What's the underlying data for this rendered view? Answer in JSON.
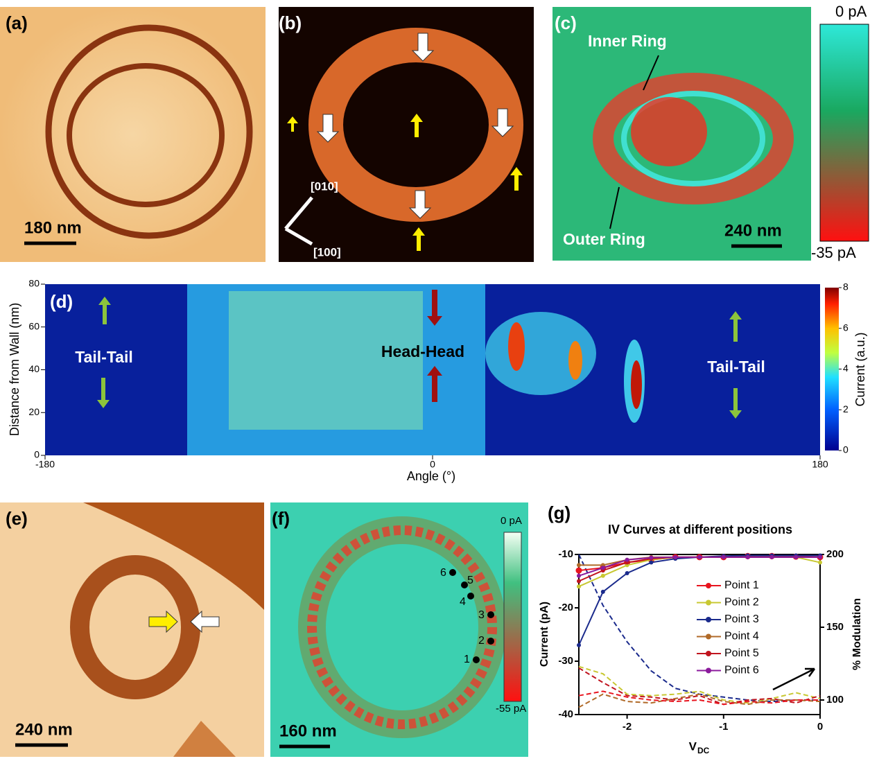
{
  "panels": {
    "a": {
      "label": "(a)",
      "scale_bar": "180 nm"
    },
    "b": {
      "label": "(b)",
      "directions": [
        "[010]",
        "[100]"
      ]
    },
    "c": {
      "label": "(c)",
      "annotations": [
        "Inner Ring",
        "Outer Ring"
      ],
      "scale_bar": "240 nm",
      "colorbar_top": "0 pA",
      "colorbar_bottom": "-35 pA"
    },
    "d": {
      "label": "(d)",
      "annotations": [
        "Tail-Tail",
        "Head-Head",
        "Tail-Tail"
      ],
      "xlabel": "Angle (°)",
      "ylabel": "Distance from Wall (nm)",
      "xlim": [
        -180,
        180
      ],
      "xticks": [
        -180,
        0,
        180
      ],
      "ylim": [
        0,
        80
      ],
      "yticks": [
        0,
        20,
        40,
        60,
        80
      ],
      "colorbar_label": "Current (a.u.)",
      "colorbar_lim": [
        0,
        8
      ],
      "colorbar_ticks": [
        0,
        2,
        4,
        6,
        8
      ]
    },
    "e": {
      "label": "(e)",
      "scale_bar": "240 nm"
    },
    "f": {
      "label": "(f)",
      "scale_bar": "160 nm",
      "colorbar_top": "0 pA",
      "colorbar_bottom": "-55 pA",
      "points": [
        "1",
        "2",
        "3",
        "4",
        "5",
        "6"
      ]
    },
    "g": {
      "label": "(g)",
      "title": "IV Curves at different positions",
      "xlabel": "V",
      "xlabel_sub": "DC",
      "ylabel": "Current (pA)",
      "y2label": "% Modulation",
      "xlim": [
        -2.5,
        0
      ],
      "xticks": [
        -2,
        -1,
        0
      ],
      "ylim": [
        -40,
        -10
      ],
      "yticks": [
        -40,
        -30,
        -20,
        -10
      ],
      "y2lim": [
        90,
        200
      ],
      "y2ticks": [
        100,
        150,
        200
      ],
      "x": [
        -2.5,
        -2.25,
        -2,
        -1.75,
        -1.5,
        -1.25,
        -1,
        -0.75,
        -0.5,
        -0.25,
        0
      ],
      "series": [
        {
          "name": "Point 1",
          "color": "#e8141e",
          "values": [
            -13,
            -12.5,
            -11.5,
            -11,
            -10.5,
            -10.5,
            -10.5,
            -10.3,
            -10.3,
            -10.4,
            -10.5
          ]
        },
        {
          "name": "Point 2",
          "color": "#c8c832",
          "values": [
            -16,
            -14,
            -12,
            -11,
            -10.5,
            -10.5,
            -10.5,
            -10.5,
            -10.5,
            -10.5,
            -11.5
          ]
        },
        {
          "name": "Point 3",
          "color": "#1a2a8c",
          "values": [
            -27,
            -17,
            -13.5,
            -11.5,
            -10.8,
            -10.5,
            -10.3,
            -10.2,
            -10.2,
            -10.2,
            -10.2
          ]
        },
        {
          "name": "Point 4",
          "color": "#b06a28",
          "values": [
            -12,
            -12,
            -11,
            -10.5,
            -10.5,
            -10.5,
            -10.5,
            -10.5,
            -10.5,
            -10.5,
            -10.5
          ]
        },
        {
          "name": "Point 5",
          "color": "#c0141e",
          "values": [
            -15,
            -13,
            -11.5,
            -10.8,
            -10.5,
            -10.5,
            -10.5,
            -10.5,
            -10.5,
            -10.5,
            -10.5
          ]
        },
        {
          "name": "Point 6",
          "color": "#8b1a9c",
          "values": [
            -14,
            -12.5,
            -11,
            -10.6,
            -10.5,
            -10.5,
            -10.5,
            -10.5,
            -10.5,
            -10.5,
            -10.5
          ]
        }
      ],
      "modulation_series": [
        {
          "color": "#1a2a8c",
          "axis": "y2",
          "values": [
            200,
            165,
            140,
            120,
            108,
            104,
            102,
            100,
            99,
            100,
            100
          ]
        },
        {
          "color": "#c8c832",
          "axis": "y2",
          "values": [
            123,
            118,
            104,
            103,
            104,
            106,
            100,
            98,
            101,
            105,
            101
          ]
        },
        {
          "color": "#c0141e",
          "axis": "y2",
          "values": [
            122,
            112,
            103,
            102,
            100,
            103,
            97,
            100,
            101,
            98,
            103
          ]
        },
        {
          "color": "#b06a28",
          "axis": "y2",
          "values": [
            95,
            104,
            99,
            98,
            101,
            104,
            99,
            97,
            100,
            100,
            99
          ]
        },
        {
          "color": "#e8141e",
          "axis": "y2",
          "values": [
            103,
            106,
            102,
            100,
            99,
            100,
            97,
            99,
            98,
            100,
            100
          ]
        }
      ]
    }
  }
}
